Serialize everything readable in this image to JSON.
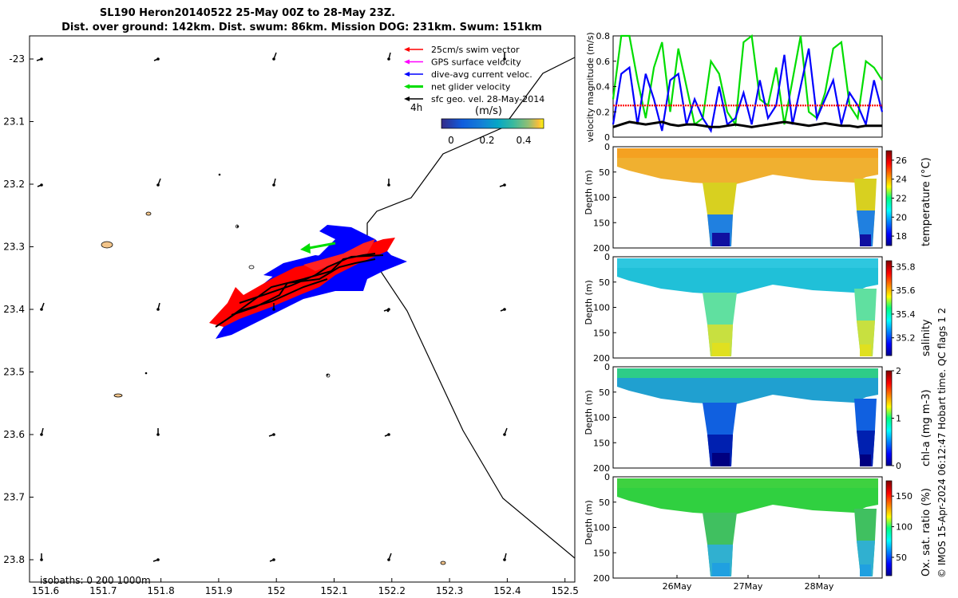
{
  "title_line1": "SL190 Heron20140522 25-May 00Z to 28-May 23Z.",
  "title_line2": "Dist. over ground: 142km. Dist. swum: 86km. Mission DOG: 231km. Swum: 151km",
  "map": {
    "legend": [
      {
        "label": "25cm/s swim vector",
        "color": "#ff0000"
      },
      {
        "label": "GPS surface velocity",
        "color": "#ff00ff"
      },
      {
        "label": "dive-avg current veloc.",
        "color": "#0000ff"
      },
      {
        "label": "net glider velocity",
        "color": "#00dd00"
      },
      {
        "label": "sfc geo. vel. 28-May-2014",
        "color": "#000000"
      }
    ],
    "colorbar_unit": "(m/s)",
    "colorbar_ticks": [
      "0",
      "0.2",
      "0.4"
    ],
    "corner_label": "4h",
    "isobaths_label": "isobaths: 0   200  1000m",
    "lon_ticks": [
      "151.6",
      "151.7",
      "151.8",
      "151.9",
      "152",
      "152.1",
      "152.2",
      "152.3",
      "152.4",
      "152.5"
    ],
    "lat_ticks": [
      "-23",
      "23.1",
      "23.2",
      "23.3",
      "23.4",
      "23.5",
      "23.6",
      "23.7",
      "23.8"
    ]
  },
  "chart_data": [
    {
      "type": "line",
      "title": "",
      "ylabel": "velocity magnitude (m/s)",
      "ylim": [
        0,
        0.8
      ],
      "yticks": [
        "0",
        "0.2",
        "0.4",
        "0.6",
        "0.8"
      ],
      "series": [
        {
          "name": "net glider velocity",
          "color": "#00dd00",
          "values": [
            0.3,
            0.8,
            0.8,
            0.45,
            0.15,
            0.55,
            0.75,
            0.2,
            0.7,
            0.4,
            0.1,
            0.15,
            0.6,
            0.5,
            0.2,
            0.1,
            0.75,
            0.8,
            0.3,
            0.25,
            0.55,
            0.1,
            0.45,
            0.8,
            0.2,
            0.15,
            0.35,
            0.7,
            0.75,
            0.25,
            0.15,
            0.6,
            0.55,
            0.45
          ]
        },
        {
          "name": "dive-avg current veloc.",
          "color": "#0000ff",
          "values": [
            0.1,
            0.5,
            0.55,
            0.1,
            0.5,
            0.3,
            0.05,
            0.45,
            0.5,
            0.1,
            0.3,
            0.15,
            0.05,
            0.4,
            0.1,
            0.15,
            0.35,
            0.1,
            0.45,
            0.15,
            0.25,
            0.65,
            0.1,
            0.4,
            0.7,
            0.15,
            0.3,
            0.45,
            0.1,
            0.35,
            0.25,
            0.1,
            0.45,
            0.2
          ]
        },
        {
          "name": "25cm/s swim vector",
          "color": "#ff0000",
          "values": [
            0.25,
            0.25,
            0.25,
            0.25,
            0.25,
            0.25,
            0.25,
            0.25,
            0.25,
            0.25,
            0.25,
            0.25,
            0.25,
            0.25,
            0.25,
            0.25,
            0.25,
            0.25,
            0.25,
            0.25,
            0.25,
            0.25,
            0.25,
            0.25,
            0.25,
            0.25,
            0.25,
            0.25,
            0.25,
            0.25,
            0.25,
            0.25,
            0.25,
            0.25
          ]
        },
        {
          "name": "sfc geo. vel.",
          "color": "#000000",
          "values": [
            0.08,
            0.1,
            0.12,
            0.11,
            0.1,
            0.11,
            0.12,
            0.1,
            0.09,
            0.1,
            0.1,
            0.09,
            0.08,
            0.08,
            0.09,
            0.1,
            0.09,
            0.08,
            0.09,
            0.1,
            0.11,
            0.12,
            0.11,
            0.1,
            0.09,
            0.1,
            0.11,
            0.1,
            0.09,
            0.09,
            0.08,
            0.09,
            0.09,
            0.09
          ]
        }
      ]
    },
    {
      "type": "heatmap",
      "ylabel": "Depth (m)",
      "yticks": [
        "0",
        "50",
        "100",
        "150",
        "200"
      ],
      "colorbar_label": "temperature (°C)",
      "colorbar_ticks": [
        "18",
        "20",
        "22",
        "24",
        "26"
      ],
      "clim": [
        17,
        27
      ]
    },
    {
      "type": "heatmap",
      "ylabel": "Depth (m)",
      "yticks": [
        "0",
        "50",
        "100",
        "150",
        "200"
      ],
      "colorbar_label": "salinity",
      "colorbar_ticks": [
        "35.2",
        "35.4",
        "35.6",
        "35.8"
      ],
      "clim": [
        35.05,
        35.85
      ]
    },
    {
      "type": "heatmap",
      "ylabel": "Depth (m)",
      "yticks": [
        "0",
        "50",
        "100",
        "150",
        "200"
      ],
      "colorbar_label": "chl-a (mg m-3)",
      "colorbar_ticks": [
        "0",
        "1",
        "2"
      ],
      "clim": [
        0,
        2
      ]
    },
    {
      "type": "heatmap",
      "ylabel": "Depth (m)",
      "yticks": [
        "0",
        "50",
        "100",
        "150",
        "200"
      ],
      "colorbar_label": "Ox. sat. ratio (%)",
      "colorbar_ticks": [
        "50",
        "100",
        "150"
      ],
      "clim": [
        20,
        175
      ],
      "x_ticks": [
        "26May",
        "27May",
        "28May"
      ]
    }
  ],
  "side_note": "© IMOS 15-Apr-2024 06:12:47 Hobart time. QC flags 1  2"
}
